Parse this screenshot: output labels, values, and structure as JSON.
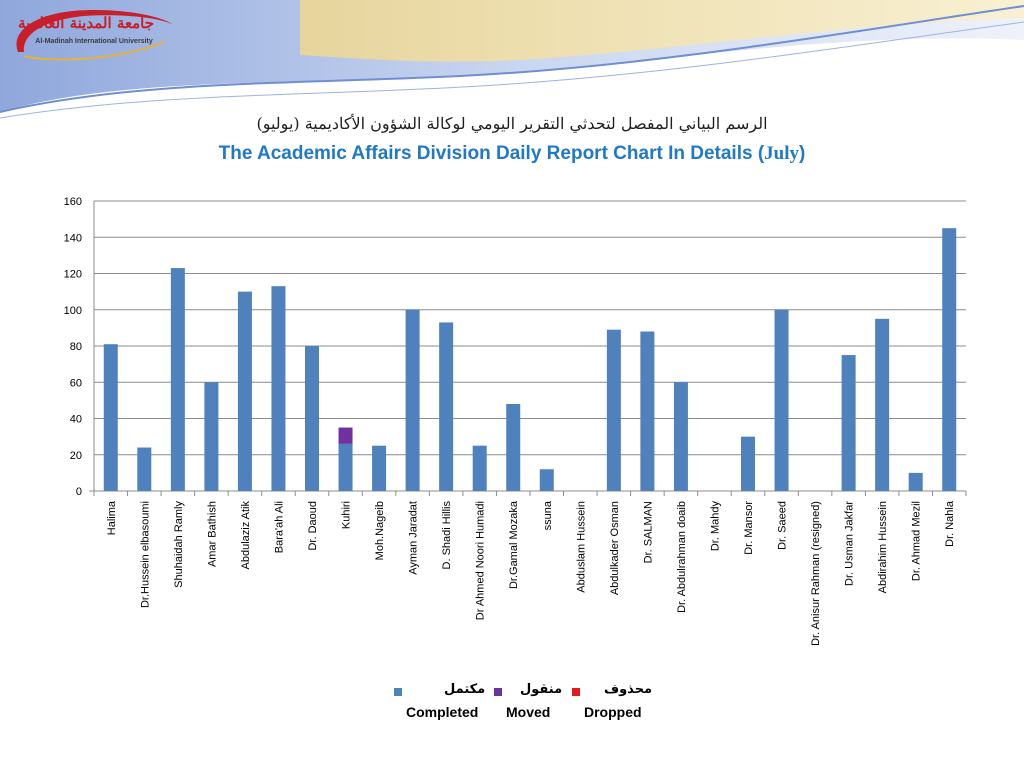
{
  "logo": {
    "arabic_name": "جامعة المدينة العالمية",
    "english_name": "Al-Madinah International University"
  },
  "title": {
    "arabic": "الرسم البياني المفصل لتحدثي التقرير اليومي لوكالة الشؤون الأكاديمية (يوليو)",
    "english_main": "The Academic Affairs Division Daily Report Chart In Details (",
    "english_month": "July",
    "english_close": ")"
  },
  "legend": [
    {
      "arabic": "مكتمل",
      "english": "Completed",
      "color": "#4f81bd"
    },
    {
      "arabic": "منقول",
      "english": "Moved",
      "color": "#7030a0"
    },
    {
      "arabic": "محذوف",
      "english": "Dropped",
      "color": "#e31a1c"
    }
  ],
  "chart_data": {
    "type": "bar",
    "stacked": true,
    "categories": [
      "Halima",
      "Dr.Hussein elbasoumi",
      "Shuhaidah Ramly",
      "Amar Bathish",
      "Abdulaziz Atik",
      "Bara'ah Ali",
      "Dr. Daoud",
      "Kuhiri",
      "Moh.Nageib",
      "Ayman Jaradat",
      "D. Shadi Hillis",
      "Dr Ahmed Noori Humadi",
      "Dr.Gamal Mozaka",
      "ssuna",
      "Abduslam Hussein",
      "Abdulkader Osman",
      "Dr. SALMAN",
      "Dr. Abdulrahman doaib",
      "Dr. Mahdy",
      "Dr. Mansor",
      "Dr. Saeed",
      "Dr. Anisur Rahman (resigned)",
      "Dr. Usman Jakfar",
      "Abdirahim Hussein",
      "Dr. Ahmad Mezil",
      "Dr. Nahla"
    ],
    "series": [
      {
        "name": "Completed",
        "color": "#4f81bd",
        "values": [
          81,
          24,
          123,
          60,
          110,
          113,
          80,
          26,
          25,
          100,
          93,
          25,
          48,
          12,
          0,
          89,
          88,
          60,
          0,
          30,
          100,
          0,
          75,
          95,
          10,
          145
        ]
      },
      {
        "name": "Moved",
        "color": "#7030a0",
        "values": [
          0,
          0,
          0,
          0,
          0,
          0,
          0,
          9,
          0,
          0,
          0,
          0,
          0,
          0,
          0,
          0,
          0,
          0,
          0,
          0,
          0,
          0,
          0,
          0,
          0,
          0
        ]
      },
      {
        "name": "Dropped",
        "color": "#e31a1c",
        "values": [
          0,
          0,
          0,
          0,
          0,
          0,
          0,
          0,
          0,
          0,
          0,
          0,
          0,
          0,
          0,
          0,
          0,
          0,
          0,
          0,
          0,
          0,
          0,
          0,
          0,
          0
        ]
      }
    ],
    "y_ticks": [
      0,
      20,
      40,
      60,
      80,
      100,
      120,
      140,
      160
    ],
    "ylim": [
      0,
      160
    ],
    "grid": true,
    "legend_position": "bottom-center"
  }
}
